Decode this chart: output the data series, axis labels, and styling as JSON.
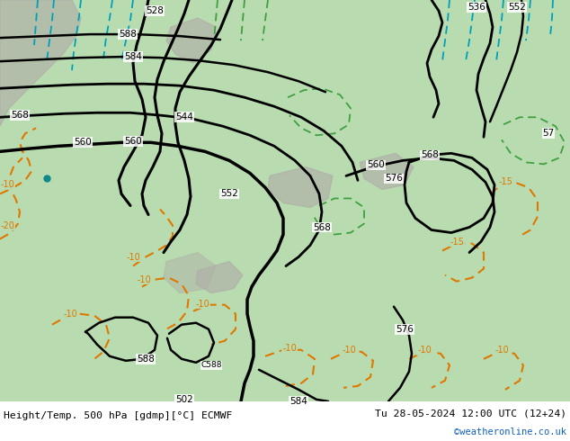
{
  "title_left": "Height/Temp. 500 hPa [gdmp][°C] ECMWF",
  "title_right": "Tu 28-05-2024 12:00 UTC (12+24)",
  "credit": "©weatheronline.co.uk",
  "bg_color": "#ffffff",
  "land_green": "#b8dcb0",
  "sea_blue": "#a0c8e8",
  "gray_terrain": "#b0b0a8",
  "footer_bg": "#ffffff",
  "black_lw": 2.0,
  "orange_color": "#e07800",
  "cyan_color": "#00a0b8",
  "green_color": "#40a040",
  "figsize": [
    6.34,
    4.9
  ],
  "dpi": 100
}
